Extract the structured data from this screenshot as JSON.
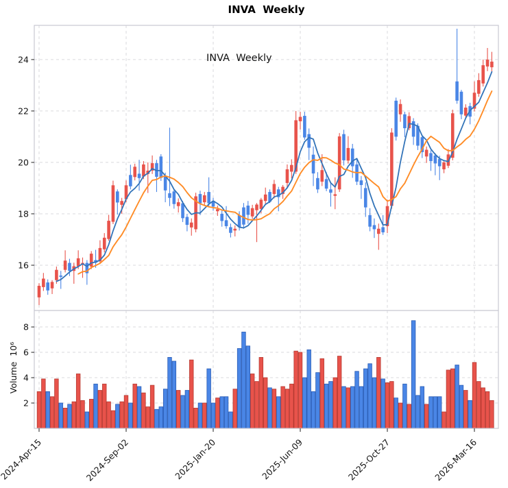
{
  "title": "INVA  Weekly",
  "annotation": "INVA  Weekly",
  "chart_data": {
    "type": "candlestick",
    "symbol": "INVA",
    "timeframe": "Weekly",
    "title": "INVA  Weekly",
    "legend_position": "none",
    "grid": "dashed",
    "x_tick_labels": [
      "2024-Apr-15",
      "2024-Sep-02",
      "2025-Jan-20",
      "2025-Jun-09",
      "2025-Oct-27",
      "2026-Mar-16"
    ],
    "x_tick_indices": [
      0,
      20,
      40,
      60,
      80,
      100
    ],
    "price_axis": {
      "ticks": [
        16,
        18,
        20,
        22,
        24
      ],
      "min": 14.24,
      "max": 25.33
    },
    "volume_axis": {
      "label": "Volume  10⁶",
      "ticks": [
        2,
        4,
        6,
        8
      ],
      "min": 0,
      "max": 9.3
    },
    "ma_short_window": 5,
    "ma_long_window": 10,
    "colors": {
      "up": "#e8534b",
      "down": "#4a86e6",
      "up_edge": "#b53a31",
      "down_edge": "#2a5cb4",
      "ma_short": "#3273b8",
      "ma_long": "#ff8c26",
      "grid": "#d9d9de",
      "spine": "#c7c7d1",
      "tick": "#333333"
    },
    "candles_format": [
      "open",
      "high",
      "low",
      "close",
      "volume_millions"
    ],
    "candles": [
      [
        14.75,
        15.3,
        14.45,
        15.2,
        2.9
      ],
      [
        15.15,
        15.7,
        15.0,
        15.48,
        3.9
      ],
      [
        15.33,
        15.45,
        14.85,
        15.02,
        2.9
      ],
      [
        15.1,
        15.42,
        14.88,
        15.35,
        2.5
      ],
      [
        15.42,
        15.95,
        15.28,
        15.82,
        3.9
      ],
      [
        15.6,
        15.78,
        15.08,
        15.55,
        2.0
      ],
      [
        15.82,
        16.58,
        15.72,
        16.18,
        1.6
      ],
      [
        16.09,
        16.25,
        15.58,
        15.78,
        1.9
      ],
      [
        15.78,
        16.1,
        15.28,
        15.96,
        2.1
      ],
      [
        15.96,
        16.58,
        15.85,
        16.27,
        4.3
      ],
      [
        16.05,
        16.3,
        15.51,
        16.09,
        2.2
      ],
      [
        16.09,
        16.2,
        15.24,
        15.69,
        1.3
      ],
      [
        15.95,
        16.55,
        15.85,
        16.45,
        2.3
      ],
      [
        16.2,
        16.6,
        15.9,
        16.1,
        3.5
      ],
      [
        16.15,
        16.97,
        16.05,
        16.67,
        3.0
      ],
      [
        16.62,
        17.25,
        16.5,
        17.07,
        3.5
      ],
      [
        17.02,
        17.96,
        16.95,
        17.73,
        2.1
      ],
      [
        17.69,
        19.29,
        17.6,
        19.11,
        1.4
      ],
      [
        18.87,
        18.95,
        17.97,
        18.44,
        1.9
      ],
      [
        18.35,
        18.62,
        18.0,
        18.5,
        2.1
      ],
      [
        18.57,
        19.3,
        18.45,
        19.11,
        2.6
      ],
      [
        19.51,
        19.91,
        18.95,
        19.07,
        2.0
      ],
      [
        19.43,
        19.95,
        19.3,
        19.83,
        3.5
      ],
      [
        19.56,
        20.1,
        18.9,
        19.39,
        3.3
      ],
      [
        19.45,
        20.05,
        19.35,
        19.92,
        2.8
      ],
      [
        19.55,
        20.0,
        18.81,
        19.68,
        1.7
      ],
      [
        19.68,
        20.27,
        19.55,
        19.97,
        3.4
      ],
      [
        19.97,
        20.1,
        18.85,
        19.44,
        1.5
      ],
      [
        20.23,
        20.32,
        19.28,
        19.4,
        1.7
      ],
      [
        19.48,
        19.6,
        18.45,
        18.91,
        3.1
      ],
      [
        18.8,
        21.35,
        18.3,
        18.62,
        5.6
      ],
      [
        18.87,
        18.95,
        18.2,
        18.38,
        5.3
      ],
      [
        18.3,
        18.6,
        18.05,
        18.45,
        3.0
      ],
      [
        18.41,
        18.5,
        17.68,
        17.83,
        2.6
      ],
      [
        17.88,
        18.0,
        17.32,
        17.57,
        3.0
      ],
      [
        17.47,
        17.82,
        17.15,
        17.66,
        5.4
      ],
      [
        17.4,
        18.82,
        17.28,
        18.68,
        1.6
      ],
      [
        18.77,
        18.9,
        17.95,
        18.41,
        2.0
      ],
      [
        18.45,
        18.85,
        18.32,
        18.72,
        2.0
      ],
      [
        18.85,
        19.42,
        18.3,
        18.41,
        4.7
      ],
      [
        18.5,
        18.62,
        18.12,
        18.28,
        2.0
      ],
      [
        18.1,
        18.32,
        17.92,
        18.18,
        2.4
      ],
      [
        18.0,
        18.12,
        17.5,
        17.72,
        2.5
      ],
      [
        17.75,
        18.3,
        17.42,
        17.52,
        2.5
      ],
      [
        17.48,
        17.62,
        17.08,
        17.26,
        1.3
      ],
      [
        17.35,
        17.55,
        17.12,
        17.42,
        3.1
      ],
      [
        17.95,
        18.1,
        17.35,
        17.48,
        6.3
      ],
      [
        18.25,
        18.42,
        17.42,
        17.58,
        7.6
      ],
      [
        18.32,
        18.5,
        17.61,
        17.96,
        6.5
      ],
      [
        17.9,
        18.35,
        17.8,
        18.22,
        4.3
      ],
      [
        18.14,
        18.42,
        16.9,
        18.36,
        3.7
      ],
      [
        18.19,
        18.62,
        18.02,
        18.55,
        5.6
      ],
      [
        18.5,
        19.02,
        18.35,
        18.75,
        4.0
      ],
      [
        18.85,
        18.95,
        18.42,
        18.47,
        3.2
      ],
      [
        18.77,
        19.32,
        18.6,
        19.16,
        3.1
      ],
      [
        18.95,
        19.05,
        18.1,
        18.65,
        2.5
      ],
      [
        18.77,
        19.12,
        18.58,
        19.05,
        3.3
      ],
      [
        19.2,
        19.92,
        19.02,
        19.73,
        3.1
      ],
      [
        19.64,
        20.12,
        19.38,
        19.9,
        3.5
      ],
      [
        19.64,
        22.0,
        19.55,
        21.64,
        6.1
      ],
      [
        21.6,
        21.97,
        21.28,
        21.77,
        6.0
      ],
      [
        21.81,
        21.97,
        20.88,
        20.97,
        4.0
      ],
      [
        21.1,
        21.32,
        20.09,
        20.57,
        6.2
      ],
      [
        20.3,
        20.62,
        19.08,
        19.57,
        2.9
      ],
      [
        19.39,
        19.62,
        18.81,
        18.95,
        4.4
      ],
      [
        19.25,
        20.32,
        19.08,
        19.7,
        5.5
      ],
      [
        19.35,
        19.62,
        18.88,
        18.98,
        3.5
      ],
      [
        18.95,
        19.22,
        18.28,
        18.82,
        3.7
      ],
      [
        18.7,
        19.42,
        18.18,
        18.76,
        4.0
      ],
      [
        18.95,
        21.14,
        18.85,
        21.01,
        5.7
      ],
      [
        21.1,
        21.27,
        19.88,
        20.08,
        3.3
      ],
      [
        20.07,
        21.02,
        19.95,
        20.56,
        3.2
      ],
      [
        20.54,
        20.72,
        19.4,
        19.85,
        3.3
      ],
      [
        19.92,
        20.12,
        19.12,
        19.25,
        4.5
      ],
      [
        19.3,
        19.47,
        18.58,
        19.12,
        3.3
      ],
      [
        19.0,
        19.22,
        17.88,
        18.25,
        4.7
      ],
      [
        17.95,
        18.22,
        17.32,
        17.5,
        5.1
      ],
      [
        17.56,
        17.82,
        17.06,
        17.4,
        4.0
      ],
      [
        17.22,
        17.62,
        16.6,
        17.42,
        5.6
      ],
      [
        17.48,
        17.95,
        17.18,
        17.28,
        3.9
      ],
      [
        17.52,
        18.55,
        17.25,
        18.3,
        3.6
      ],
      [
        18.31,
        21.33,
        18.2,
        21.16,
        3.7
      ],
      [
        22.4,
        22.52,
        20.85,
        21.0,
        2.4
      ],
      [
        21.87,
        22.45,
        21.58,
        22.27,
        2.0
      ],
      [
        21.87,
        21.97,
        20.98,
        21.33,
        3.5
      ],
      [
        21.33,
        21.95,
        21.25,
        21.8,
        1.9
      ],
      [
        21.6,
        21.72,
        20.68,
        21.0,
        8.5
      ],
      [
        21.42,
        21.52,
        20.48,
        20.65,
        2.6
      ],
      [
        20.98,
        21.05,
        20.17,
        20.4,
        3.3
      ],
      [
        20.23,
        20.62,
        19.98,
        20.49,
        1.9
      ],
      [
        20.36,
        20.47,
        19.67,
        20.05,
        2.5
      ],
      [
        20.27,
        20.36,
        19.5,
        19.96,
        2.5
      ],
      [
        20.13,
        20.26,
        19.31,
        19.85,
        2.5
      ],
      [
        19.73,
        20.06,
        19.58,
        20.0,
        1.3
      ],
      [
        19.87,
        20.52,
        19.78,
        20.31,
        4.6
      ],
      [
        20.18,
        22.05,
        20.08,
        21.91,
        4.7
      ],
      [
        23.15,
        25.2,
        22.28,
        22.4,
        5.0
      ],
      [
        22.75,
        22.82,
        21.68,
        21.87,
        3.4
      ],
      [
        21.82,
        22.26,
        21.72,
        22.13,
        3.0
      ],
      [
        22.19,
        22.32,
        21.48,
        21.78,
        2.2
      ],
      [
        22.09,
        23.15,
        21.98,
        22.71,
        5.2
      ],
      [
        22.67,
        23.47,
        22.55,
        23.2,
        3.7
      ],
      [
        23.07,
        24.0,
        22.95,
        23.78,
        3.2
      ],
      [
        23.73,
        24.45,
        23.55,
        24.0,
        2.9
      ],
      [
        23.7,
        24.3,
        23.5,
        23.92,
        2.2
      ]
    ]
  }
}
